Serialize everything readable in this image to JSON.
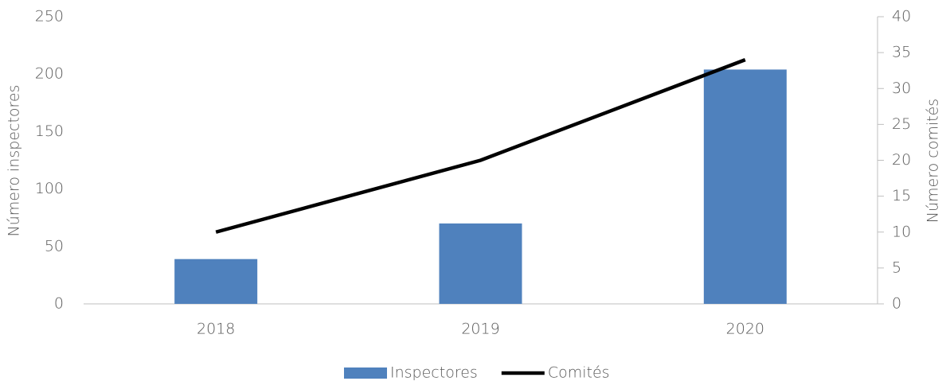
{
  "chart_data": {
    "type": "bar",
    "categories": [
      "2018",
      "2019",
      "2020"
    ],
    "series": [
      {
        "name": "Inspectores",
        "color": "#4f81bd",
        "type": "bar",
        "values": [
          39,
          70,
          204
        ]
      },
      {
        "name": "Comités",
        "color": "#000000",
        "type": "line",
        "axis": "y2",
        "values": [
          10,
          20,
          34
        ]
      }
    ],
    "ylabel": "Número inspectores",
    "y2label": "Número comités",
    "ylim": [
      0,
      250
    ],
    "yticks": [
      0,
      50,
      100,
      150,
      200,
      250
    ],
    "y2lim": [
      0,
      40
    ],
    "y2ticks": [
      0,
      5,
      10,
      15,
      20,
      25,
      30,
      35,
      40
    ],
    "legend": "bottom"
  }
}
